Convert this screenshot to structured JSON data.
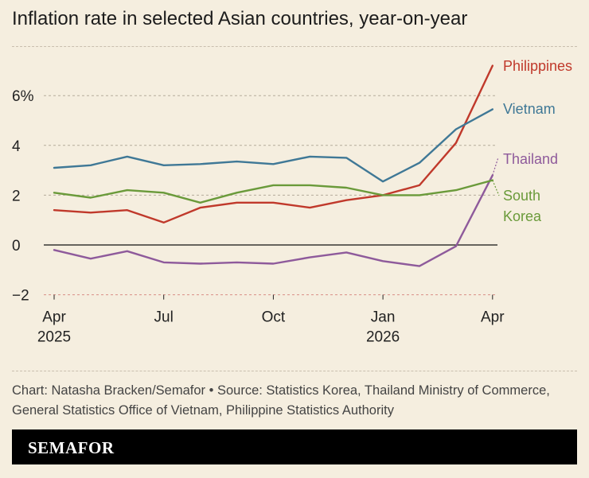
{
  "chart_data": {
    "type": "line",
    "title": "Inflation rate in selected Asian countries, year-on-year",
    "x": [
      "2025-04",
      "2025-05",
      "2025-06",
      "2025-07",
      "2025-08",
      "2025-09",
      "2025-10",
      "2025-11",
      "2025-12",
      "2026-01",
      "2026-02",
      "2026-03",
      "2026-04"
    ],
    "xticks": [
      {
        "x": "2025-04",
        "line1": "Apr",
        "line2": "2025"
      },
      {
        "x": "2025-07",
        "line1": "Jul",
        "line2": ""
      },
      {
        "x": "2025-10",
        "line1": "Oct",
        "line2": ""
      },
      {
        "x": "2026-01",
        "line1": "Jan",
        "line2": "2026"
      },
      {
        "x": "2026-04",
        "line1": "Apr",
        "line2": ""
      }
    ],
    "yticks": [
      {
        "value": -2,
        "label": "−2"
      },
      {
        "value": 0,
        "label": "0"
      },
      {
        "value": 2,
        "label": "2"
      },
      {
        "value": 4,
        "label": "4"
      },
      {
        "value": 6,
        "label": "6%"
      }
    ],
    "ylim": [
      -2,
      7.3
    ],
    "grid": true,
    "series": [
      {
        "name": "Philippines",
        "label_lines": [
          "Philippines"
        ],
        "color": "#c0392b",
        "values": [
          1.4,
          1.3,
          1.4,
          0.9,
          1.5,
          1.7,
          1.7,
          1.5,
          1.8,
          2.0,
          2.4,
          4.1,
          7.2
        ]
      },
      {
        "name": "Vietnam",
        "label_lines": [
          "Vietnam"
        ],
        "color": "#3f7896",
        "values": [
          3.1,
          3.2,
          3.55,
          3.2,
          3.25,
          3.35,
          3.25,
          3.55,
          3.5,
          2.55,
          3.3,
          4.65,
          5.45
        ]
      },
      {
        "name": "Thailand",
        "label_lines": [
          "Thailand"
        ],
        "color": "#8e5a9b",
        "values": [
          -0.2,
          -0.55,
          -0.25,
          -0.7,
          -0.75,
          -0.7,
          -0.75,
          -0.5,
          -0.3,
          -0.65,
          -0.85,
          -0.05,
          2.8
        ]
      },
      {
        "name": "South Korea",
        "label_lines": [
          "South",
          "Korea"
        ],
        "color": "#6a9a3a",
        "values": [
          2.1,
          1.9,
          2.2,
          2.1,
          1.7,
          2.1,
          2.4,
          2.4,
          2.3,
          2.0,
          2.0,
          2.2,
          2.6
        ]
      }
    ]
  },
  "footer": {
    "source": "Chart: Natasha Bracken/Semafor • Source: Statistics Korea, Thailand Ministry of Commerce, General Statistics Office of Vietnam, Philippine Statistics Authority",
    "brand": "SEMAFOR"
  }
}
